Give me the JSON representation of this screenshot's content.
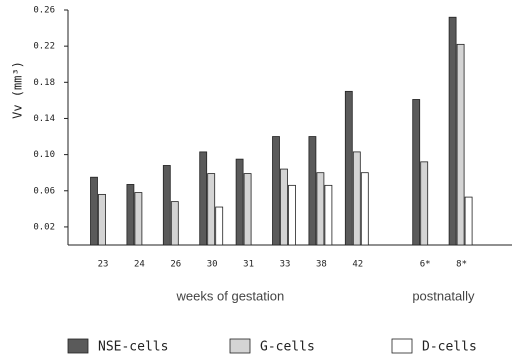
{
  "chart_data": {
    "type": "bar",
    "y_label": "Vv (mm³)",
    "groups": [
      {
        "label": "weeks of gestation",
        "categories": [
          "23",
          "24",
          "26",
          "30",
          "31",
          "33",
          "38",
          "42"
        ]
      },
      {
        "label": "postnatally",
        "categories": [
          "6*",
          "8*"
        ]
      }
    ],
    "series": [
      {
        "name": "NSE-cells",
        "color": "#5a5a5a",
        "values": [
          0.075,
          0.067,
          0.088,
          0.103,
          0.095,
          0.12,
          0.12,
          0.17,
          0.161,
          0.252
        ]
      },
      {
        "name": "G-cells",
        "color": "#d4d4d4",
        "values": [
          0.056,
          0.058,
          0.048,
          0.079,
          0.079,
          0.084,
          0.08,
          0.103,
          0.092,
          0.222
        ]
      },
      {
        "name": "D-cells",
        "color": "#ffffff",
        "values": [
          null,
          null,
          null,
          0.042,
          null,
          0.066,
          0.066,
          0.08,
          null,
          0.053
        ]
      }
    ],
    "ylim": [
      0,
      0.26
    ],
    "yticks": [
      0.02,
      0.06,
      {
        "value": 0.1,
        "label": "0.10"
      },
      0.14,
      0.18,
      0.22,
      0.26
    ]
  }
}
